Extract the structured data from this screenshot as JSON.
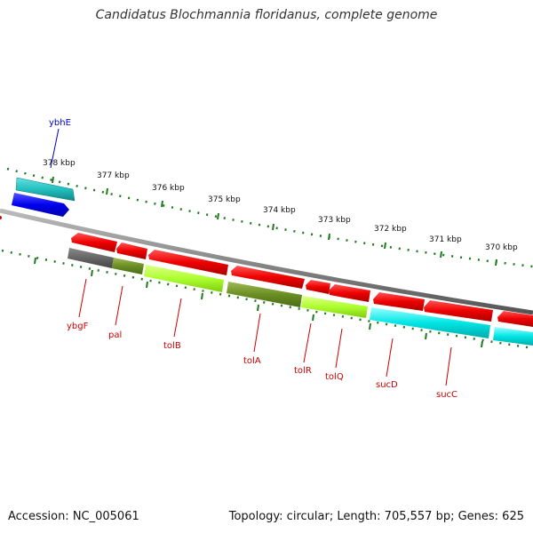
{
  "title": "Candidatus Blochmannia floridanus, complete genome",
  "footer": {
    "accession": "Accession: NC_005061",
    "summary": "Topology: circular; Length: 705,557 bp; Genes: 625"
  },
  "colors": {
    "backbone": "#8a8a8a",
    "ticks": "#1f7a1f",
    "label_red": "#cc0000",
    "label_blue": "#0000cc"
  },
  "scale_labels": [
    "378 kbp",
    "377 kbp",
    "376 kbp",
    "375 kbp",
    "374 kbp",
    "373 kbp",
    "372 kbp",
    "371 kbp",
    "370 kbp"
  ],
  "gene_labels": [
    {
      "name": "ybhE",
      "color": "#0000cc"
    },
    {
      "name": "ybgF",
      "color": "#cc0000"
    },
    {
      "name": "pal",
      "color": "#cc0000"
    },
    {
      "name": "tolB",
      "color": "#cc0000"
    },
    {
      "name": "tolA",
      "color": "#cc0000"
    },
    {
      "name": "tolR",
      "color": "#cc0000"
    },
    {
      "name": "tolQ",
      "color": "#cc0000"
    },
    {
      "name": "sucD",
      "color": "#cc0000"
    },
    {
      "name": "sucC",
      "color": "#cc0000"
    }
  ]
}
